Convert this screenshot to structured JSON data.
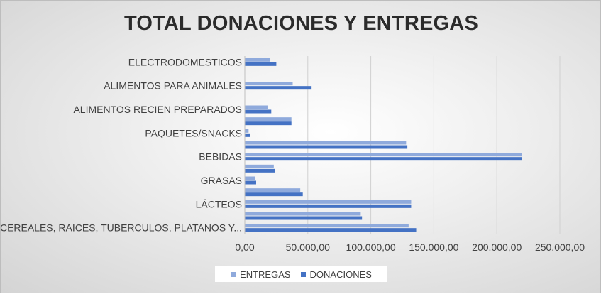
{
  "chart_data": {
    "type": "bar",
    "orientation": "horizontal",
    "title": "TOTAL DONACIONES Y ENTREGAS",
    "categories": [
      "CEREALES, RAICES, TUBERCULOS, PLATANOS Y...",
      "",
      "LÁCTEOS",
      "",
      "GRASAS",
      "",
      "BEBIDAS",
      "",
      "PAQUETES/SNACKS",
      "",
      "ALIMENTOS RECIEN PREPARADOS",
      "",
      "ALIMENTOS PARA ANIMALES",
      "",
      "ELECTRODOMESTICOS"
    ],
    "series": [
      {
        "name": "ENTREGAS",
        "color": "#8faadc",
        "values": [
          130000,
          92000,
          132000,
          44000,
          8000,
          23000,
          220000,
          128000,
          3000,
          37000,
          18000,
          0,
          38000,
          0,
          20000
        ]
      },
      {
        "name": "DONACIONES",
        "color": "#4472c4",
        "values": [
          136000,
          93000,
          132000,
          46000,
          9000,
          24000,
          220000,
          129000,
          4000,
          37000,
          21000,
          0,
          53000,
          0,
          25000
        ]
      }
    ],
    "xticks": [
      "0,00",
      "50.000,00",
      "100.000,00",
      "150.000,00",
      "200.000,00",
      "250.000,00"
    ],
    "xlim": [
      0,
      250000
    ],
    "grid": true,
    "legend": {
      "position": "bottom"
    }
  }
}
